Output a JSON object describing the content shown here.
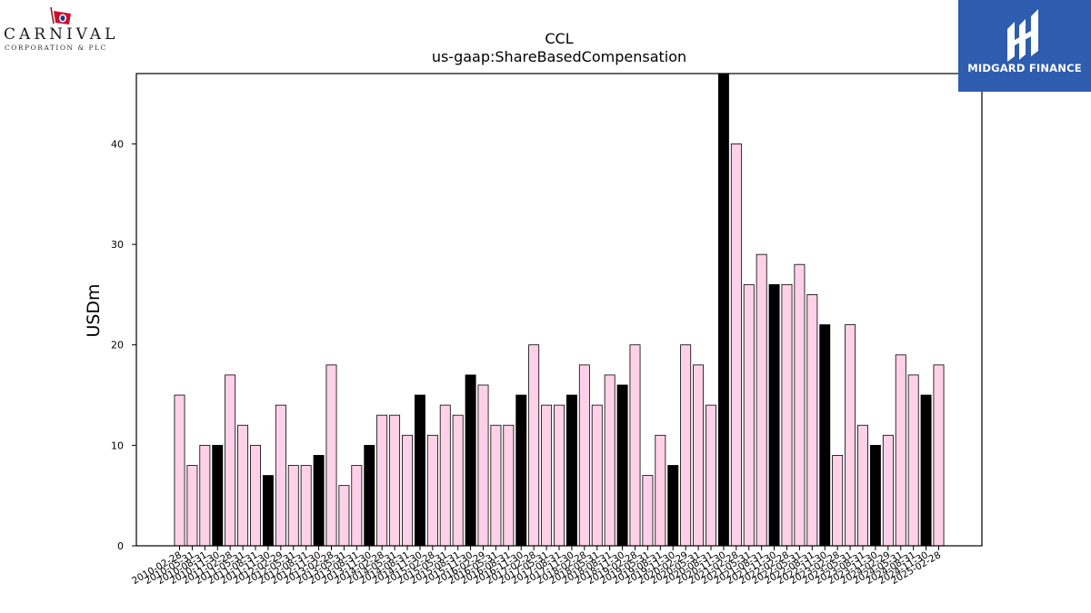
{
  "logos": {
    "left": {
      "name": "CARNIVAL",
      "subtitle": "CORPORATION & PLC"
    },
    "right": {
      "name": "MIDGARD FINANCE"
    }
  },
  "colors": {
    "bar_default": "#ffd1e8",
    "bar_highlight": "#000000",
    "bar_edge": "#000000",
    "brand_right": "#2e5cae"
  },
  "chart_data": {
    "type": "bar",
    "title": "CCL",
    "subtitle": "us-gaap:ShareBasedCompensation",
    "xlabel": "",
    "ylabel": "USDm",
    "ylim": [
      0,
      47
    ],
    "yticks": [
      0,
      10,
      20,
      30,
      40
    ],
    "grid": false,
    "categories": [
      "2010-02-28",
      "2010-05-31",
      "2010-08-31",
      "2010-11-30",
      "2011-02-28",
      "2011-05-31",
      "2011-08-31",
      "2011-11-30",
      "2012-02-29",
      "2012-05-31",
      "2012-08-31",
      "2012-11-30",
      "2013-02-28",
      "2013-05-31",
      "2013-08-31",
      "2013-11-30",
      "2014-02-28",
      "2014-05-31",
      "2014-08-31",
      "2014-11-30",
      "2015-02-28",
      "2015-05-31",
      "2015-08-31",
      "2015-11-30",
      "2016-02-29",
      "2016-05-31",
      "2016-08-31",
      "2016-11-30",
      "2017-02-28",
      "2017-05-31",
      "2017-08-31",
      "2017-11-30",
      "2018-02-28",
      "2018-05-31",
      "2018-08-31",
      "2018-11-30",
      "2019-02-28",
      "2019-05-31",
      "2019-08-31",
      "2019-11-30",
      "2020-02-29",
      "2020-05-31",
      "2020-08-31",
      "2020-11-30",
      "2021-02-28",
      "2021-05-31",
      "2021-08-31",
      "2021-11-30",
      "2022-02-28",
      "2022-05-31",
      "2022-08-31",
      "2022-11-30",
      "2023-02-28",
      "2023-05-31",
      "2023-08-31",
      "2023-11-30",
      "2024-02-29",
      "2024-05-31",
      "2024-08-31",
      "2024-11-30",
      "2025-02-28"
    ],
    "values": [
      15,
      8,
      10,
      10,
      17,
      12,
      10,
      7,
      14,
      8,
      8,
      9,
      18,
      6,
      8,
      10,
      13,
      13,
      11,
      15,
      11,
      14,
      13,
      17,
      16,
      12,
      12,
      15,
      20,
      14,
      14,
      15,
      18,
      14,
      17,
      16,
      20,
      7,
      11,
      8,
      20,
      18,
      14,
      47,
      40,
      26,
      29,
      26,
      26,
      28,
      25,
      22,
      9,
      22,
      12,
      10,
      11,
      19,
      17,
      15,
      18
    ],
    "highlight_every": 4,
    "highlight_offset": 3
  }
}
